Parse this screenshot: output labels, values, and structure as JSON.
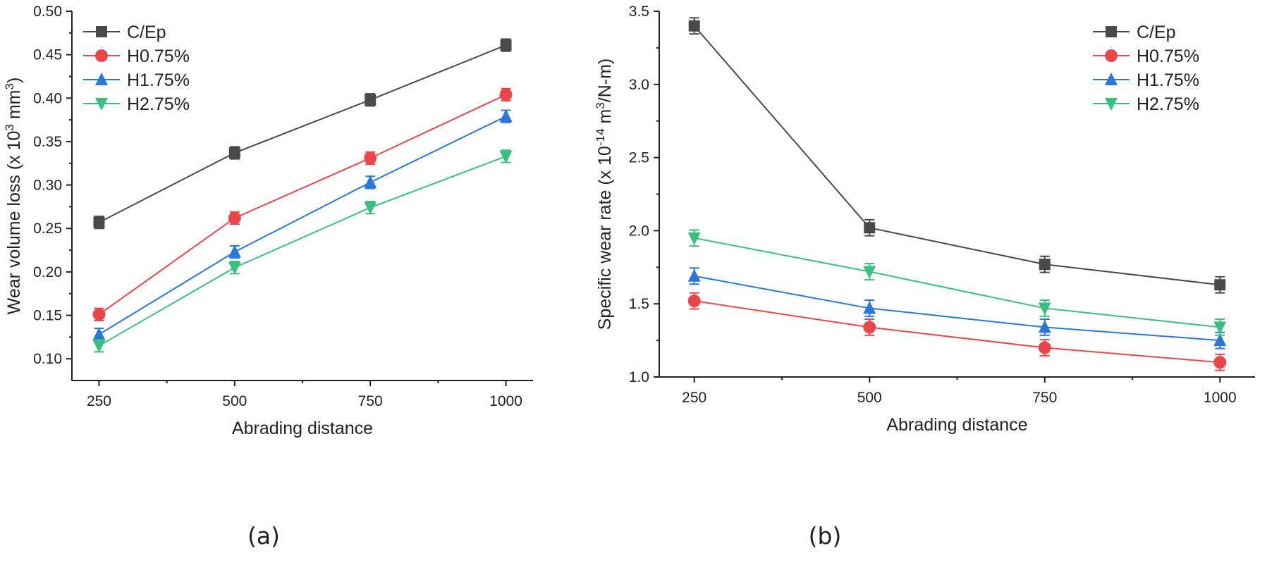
{
  "chart_data": [
    {
      "type": "line",
      "panel_label": "(a)",
      "xlabel": "Abrading distance",
      "ylabel_parts": [
        "Wear volume loss (x 10",
        "3",
        " mm",
        "3",
        ")"
      ],
      "x": [
        250,
        500,
        750,
        1000
      ],
      "xticks": [
        "250",
        "500",
        "750",
        "1000"
      ],
      "xlim": [
        200,
        1050
      ],
      "ylim": [
        0.075,
        0.5
      ],
      "yticks": [
        "0.10",
        "0.15",
        "0.20",
        "0.25",
        "0.30",
        "0.35",
        "0.40",
        "0.45",
        "0.50"
      ],
      "legend_position": "top-left",
      "error_bar": 0.007,
      "series": [
        {
          "name": "C/Ep",
          "color": "#4a4a4a",
          "marker": "square",
          "values": [
            0.257,
            0.337,
            0.398,
            0.461
          ]
        },
        {
          "name": "H0.75%",
          "color": "#e8474a",
          "marker": "circle",
          "values": [
            0.151,
            0.262,
            0.331,
            0.404
          ]
        },
        {
          "name": "H1.75%",
          "color": "#2b77d8",
          "marker": "triangle-up",
          "values": [
            0.128,
            0.223,
            0.303,
            0.379
          ]
        },
        {
          "name": "H2.75%",
          "color": "#3bbf7e",
          "marker": "triangle-down",
          "values": [
            0.115,
            0.205,
            0.274,
            0.333
          ]
        }
      ]
    },
    {
      "type": "line",
      "panel_label": "(b)",
      "xlabel": "Abrading distance",
      "ylabel_parts": [
        "Specific wear rate (x 10",
        "-14",
        " m",
        "3",
        "/N-m)"
      ],
      "x": [
        250,
        500,
        750,
        1000
      ],
      "xticks": [
        "250",
        "500",
        "750",
        "1000"
      ],
      "xlim": [
        200,
        1050
      ],
      "ylim": [
        1.0,
        3.5
      ],
      "yticks": [
        "1.0",
        "1.5",
        "2.0",
        "2.5",
        "3.0",
        "3.5"
      ],
      "legend_position": "top-right",
      "error_bar": 0.055,
      "series": [
        {
          "name": "C/Ep",
          "color": "#4a4a4a",
          "marker": "square",
          "values": [
            3.4,
            2.02,
            1.77,
            1.63
          ]
        },
        {
          "name": "H0.75%",
          "color": "#e8474a",
          "marker": "circle",
          "values": [
            1.52,
            1.34,
            1.2,
            1.1
          ]
        },
        {
          "name": "H1.75%",
          "color": "#2b77d8",
          "marker": "triangle-up",
          "values": [
            1.69,
            1.47,
            1.34,
            1.25
          ]
        },
        {
          "name": "H2.75%",
          "color": "#3bbf7e",
          "marker": "triangle-down",
          "values": [
            1.95,
            1.72,
            1.47,
            1.34
          ]
        }
      ]
    }
  ]
}
